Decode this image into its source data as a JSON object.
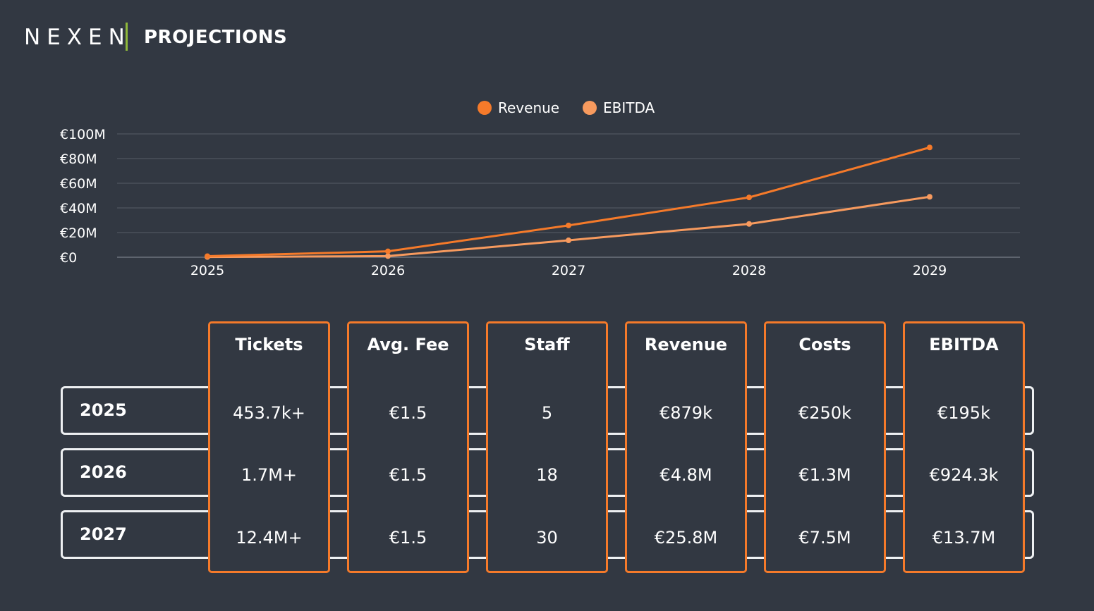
{
  "header": {
    "logo": "NEXEN",
    "title": "PROJECTIONS"
  },
  "colors": {
    "background": "#323842",
    "revenue": "#f57a2a",
    "ebitda": "#f79a5e",
    "accent_bar": "#8fb83a",
    "row_border": "#eef0f2"
  },
  "chart_data": {
    "type": "line",
    "title": "",
    "xlabel": "",
    "ylabel": "",
    "x": [
      "2025",
      "2026",
      "2027",
      "2028",
      "2029"
    ],
    "series": [
      {
        "name": "Revenue",
        "values": [
          0.879,
          4.8,
          25.8,
          48.5,
          89.0
        ]
      },
      {
        "name": "EBITDA",
        "values": [
          0.195,
          0.924,
          13.7,
          27.0,
          49.0
        ]
      }
    ],
    "ylim": [
      0,
      100
    ],
    "yticks": [
      0,
      20,
      40,
      60,
      80,
      100
    ],
    "ytick_labels": [
      "€0",
      "€20M",
      "€40M",
      "€60M",
      "€80M",
      "€100M"
    ],
    "grid": true,
    "legend": "top-center"
  },
  "table": {
    "columns": [
      "Tickets",
      "Avg. Fee",
      "Staff",
      "Revenue",
      "Costs",
      "EBITDA"
    ],
    "rows": [
      {
        "year": "2025",
        "values": [
          "453.7k+",
          "€1.5",
          "5",
          "€879k",
          "€250k",
          "€195k"
        ]
      },
      {
        "year": "2026",
        "values": [
          "1.7M+",
          "€1.5",
          "18",
          "€4.8M",
          "€1.3M",
          "€924.3k"
        ]
      },
      {
        "year": "2027",
        "values": [
          "12.4M+",
          "€1.5",
          "30",
          "€25.8M",
          "€7.5M",
          "€13.7M"
        ]
      }
    ]
  }
}
